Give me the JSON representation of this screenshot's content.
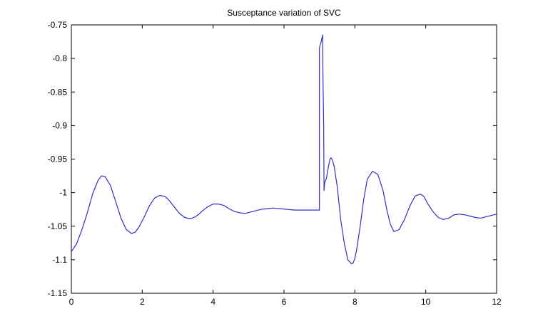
{
  "chart_data": {
    "type": "line",
    "title": "Susceptance variation of SVC",
    "xlabel": "",
    "ylabel": "",
    "xlim": [
      0,
      12
    ],
    "ylim": [
      -1.15,
      -0.75
    ],
    "xticks": [
      0,
      2,
      4,
      6,
      8,
      10,
      12
    ],
    "xtick_labels": [
      "0",
      "2",
      "4",
      "6",
      "8",
      "10",
      "12"
    ],
    "yticks": [
      -1.15,
      -1.1,
      -1.05,
      -1,
      -0.95,
      -0.9,
      -0.85,
      -0.8,
      -0.75
    ],
    "ytick_labels": [
      "-1.15",
      "-1.1",
      "-1.05",
      "-1",
      "-0.95",
      "-0.9",
      "-0.85",
      "-0.8",
      "-0.75"
    ],
    "grid": false,
    "legend": "none",
    "series": [
      {
        "color": "#2f2fcf",
        "x": [
          0,
          0.15,
          0.3,
          0.45,
          0.6,
          0.75,
          0.85,
          0.95,
          1.1,
          1.25,
          1.4,
          1.55,
          1.7,
          1.8,
          1.9,
          2.05,
          2.2,
          2.35,
          2.5,
          2.65,
          2.75,
          2.9,
          3.05,
          3.2,
          3.35,
          3.5,
          3.6,
          3.7,
          3.85,
          4.0,
          4.15,
          4.3,
          4.45,
          4.6,
          4.75,
          4.9,
          5.05,
          5.2,
          5.35,
          5.5,
          5.7,
          5.9,
          6.1,
          6.3,
          6.5,
          6.7,
          6.9,
          7.0,
          7.0,
          7.02,
          7.05,
          7.07,
          7.09,
          7.1,
          7.12,
          7.13,
          7.15,
          7.2,
          7.25,
          7.3,
          7.33,
          7.37,
          7.42,
          7.5,
          7.6,
          7.7,
          7.8,
          7.9,
          7.95,
          8.0,
          8.05,
          8.15,
          8.25,
          8.35,
          8.5,
          8.65,
          8.8,
          8.9,
          9.0,
          9.1,
          9.25,
          9.4,
          9.55,
          9.7,
          9.85,
          9.95,
          10.05,
          10.2,
          10.35,
          10.5,
          10.65,
          10.8,
          10.95,
          11.1,
          11.25,
          11.4,
          11.55,
          11.7,
          11.85,
          12.0
        ],
        "y": [
          -1.088,
          -1.076,
          -1.055,
          -1.03,
          -1.002,
          -0.982,
          -0.975,
          -0.976,
          -0.989,
          -1.013,
          -1.038,
          -1.055,
          -1.061,
          -1.059,
          -1.052,
          -1.037,
          -1.02,
          -1.008,
          -1.004,
          -1.006,
          -1.011,
          -1.021,
          -1.031,
          -1.037,
          -1.039,
          -1.036,
          -1.032,
          -1.027,
          -1.021,
          -1.017,
          -1.017,
          -1.019,
          -1.024,
          -1.028,
          -1.03,
          -1.031,
          -1.029,
          -1.027,
          -1.025,
          -1.024,
          -1.023,
          -1.024,
          -1.025,
          -1.026,
          -1.026,
          -1.026,
          -1.026,
          -1.026,
          -0.785,
          -0.78,
          -0.775,
          -0.77,
          -0.765,
          -0.83,
          -0.9,
          -0.997,
          -0.985,
          -0.978,
          -0.962,
          -0.95,
          -0.948,
          -0.952,
          -0.962,
          -0.99,
          -1.04,
          -1.075,
          -1.1,
          -1.106,
          -1.105,
          -1.098,
          -1.085,
          -1.05,
          -1.01,
          -0.98,
          -0.968,
          -0.973,
          -0.998,
          -1.025,
          -1.047,
          -1.058,
          -1.055,
          -1.04,
          -1.02,
          -1.005,
          -1.002,
          -1.006,
          -1.016,
          -1.028,
          -1.037,
          -1.04,
          -1.038,
          -1.033,
          -1.032,
          -1.033,
          -1.035,
          -1.037,
          -1.038,
          -1.036,
          -1.034,
          -1.032
        ]
      }
    ]
  }
}
